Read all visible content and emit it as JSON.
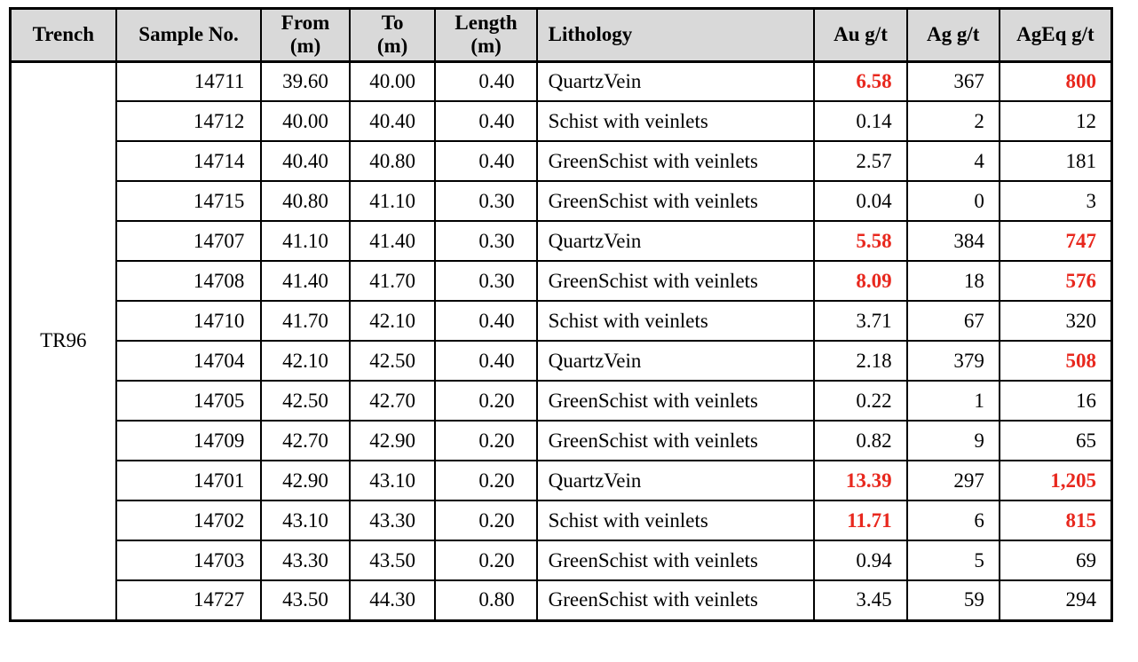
{
  "colors": {
    "highlight_red": "#e8281e",
    "header_bg": "#d9d9d9",
    "border": "#000000",
    "text": "#000000"
  },
  "table": {
    "trench_label": "TR96",
    "columns": [
      {
        "label": "Trench"
      },
      {
        "label": "Sample No."
      },
      {
        "label": "From\n(m)"
      },
      {
        "label": "To\n(m)"
      },
      {
        "label": "Length\n(m)"
      },
      {
        "label": "Lithology"
      },
      {
        "label": "Au g/t"
      },
      {
        "label": "Ag g/t"
      },
      {
        "label": "AgEq g/t"
      }
    ],
    "rows": [
      {
        "sample_no": "14711",
        "from_m": "39.60",
        "to_m": "40.00",
        "length_m": "0.40",
        "lithology": "QuartzVein",
        "au_gt": "6.58",
        "ag_gt": "367",
        "ageq_gt": "800",
        "au_highlight": true,
        "ageq_highlight": true
      },
      {
        "sample_no": "14712",
        "from_m": "40.00",
        "to_m": "40.40",
        "length_m": "0.40",
        "lithology": "Schist with veinlets",
        "au_gt": "0.14",
        "ag_gt": "2",
        "ageq_gt": "12",
        "au_highlight": false,
        "ageq_highlight": false
      },
      {
        "sample_no": "14714",
        "from_m": "40.40",
        "to_m": "40.80",
        "length_m": "0.40",
        "lithology": "GreenSchist with veinlets",
        "au_gt": "2.57",
        "ag_gt": "4",
        "ageq_gt": "181",
        "au_highlight": false,
        "ageq_highlight": false
      },
      {
        "sample_no": "14715",
        "from_m": "40.80",
        "to_m": "41.10",
        "length_m": "0.30",
        "lithology": "GreenSchist with veinlets",
        "au_gt": "0.04",
        "ag_gt": "0",
        "ageq_gt": "3",
        "au_highlight": false,
        "ageq_highlight": false
      },
      {
        "sample_no": "14707",
        "from_m": "41.10",
        "to_m": "41.40",
        "length_m": "0.30",
        "lithology": "QuartzVein",
        "au_gt": "5.58",
        "ag_gt": "384",
        "ageq_gt": "747",
        "au_highlight": true,
        "ageq_highlight": true
      },
      {
        "sample_no": "14708",
        "from_m": "41.40",
        "to_m": "41.70",
        "length_m": "0.30",
        "lithology": "GreenSchist with veinlets",
        "au_gt": "8.09",
        "ag_gt": "18",
        "ageq_gt": "576",
        "au_highlight": true,
        "ageq_highlight": true
      },
      {
        "sample_no": "14710",
        "from_m": "41.70",
        "to_m": "42.10",
        "length_m": "0.40",
        "lithology": "Schist with veinlets",
        "au_gt": "3.71",
        "ag_gt": "67",
        "ageq_gt": "320",
        "au_highlight": false,
        "ageq_highlight": false
      },
      {
        "sample_no": "14704",
        "from_m": "42.10",
        "to_m": "42.50",
        "length_m": "0.40",
        "lithology": "QuartzVein",
        "au_gt": "2.18",
        "ag_gt": "379",
        "ageq_gt": "508",
        "au_highlight": false,
        "ageq_highlight": true
      },
      {
        "sample_no": "14705",
        "from_m": "42.50",
        "to_m": "42.70",
        "length_m": "0.20",
        "lithology": "GreenSchist with veinlets",
        "au_gt": "0.22",
        "ag_gt": "1",
        "ageq_gt": "16",
        "au_highlight": false,
        "ageq_highlight": false
      },
      {
        "sample_no": "14709",
        "from_m": "42.70",
        "to_m": "42.90",
        "length_m": "0.20",
        "lithology": "GreenSchist with veinlets",
        "au_gt": "0.82",
        "ag_gt": "9",
        "ageq_gt": "65",
        "au_highlight": false,
        "ageq_highlight": false
      },
      {
        "sample_no": "14701",
        "from_m": "42.90",
        "to_m": "43.10",
        "length_m": "0.20",
        "lithology": "QuartzVein",
        "au_gt": "13.39",
        "ag_gt": "297",
        "ageq_gt": "1,205",
        "au_highlight": true,
        "ageq_highlight": true
      },
      {
        "sample_no": "14702",
        "from_m": "43.10",
        "to_m": "43.30",
        "length_m": "0.20",
        "lithology": "Schist with veinlets",
        "au_gt": "11.71",
        "ag_gt": "6",
        "ageq_gt": "815",
        "au_highlight": true,
        "ageq_highlight": true
      },
      {
        "sample_no": "14703",
        "from_m": "43.30",
        "to_m": "43.50",
        "length_m": "0.20",
        "lithology": "GreenSchist with veinlets",
        "au_gt": "0.94",
        "ag_gt": "5",
        "ageq_gt": "69",
        "au_highlight": false,
        "ageq_highlight": false
      },
      {
        "sample_no": "14727",
        "from_m": "43.50",
        "to_m": "44.30",
        "length_m": "0.80",
        "lithology": "GreenSchist with veinlets",
        "au_gt": "3.45",
        "ag_gt": "59",
        "ageq_gt": "294",
        "au_highlight": false,
        "ageq_highlight": false
      }
    ]
  }
}
